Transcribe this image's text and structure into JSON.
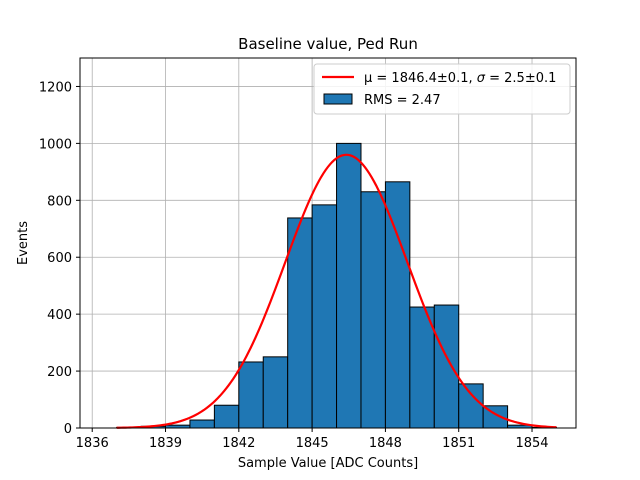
{
  "chart_data": {
    "type": "bar",
    "title": "Baseline value, Ped Run",
    "xlabel": "Sample Value [ADC Counts]",
    "ylabel": "Events",
    "xlim": [
      1835.5,
      1855.8
    ],
    "ylim": [
      0,
      1300
    ],
    "xticks": [
      1836,
      1839,
      1842,
      1845,
      1848,
      1851,
      1854
    ],
    "yticks": [
      0,
      200,
      400,
      600,
      800,
      1000,
      1200
    ],
    "grid": true,
    "legend_position": "top-right",
    "histogram": {
      "name": "RMS = 2.47",
      "bin_edges": [
        1837,
        1838,
        1839,
        1840,
        1841,
        1842,
        1843,
        1844,
        1845,
        1846,
        1847,
        1848,
        1849,
        1850,
        1851,
        1852,
        1853,
        1854,
        1855
      ],
      "counts": [
        2,
        6,
        10,
        28,
        80,
        232,
        250,
        738,
        784,
        1000,
        830,
        865,
        425,
        432,
        155,
        78,
        10,
        2
      ],
      "color": "#1f77b4"
    },
    "fit": {
      "name_prefix": "μ = 1846.4±0.1, ",
      "name_sigma": "σ",
      "name_suffix": " = 2.5±0.1",
      "mu": 1846.4,
      "sigma": 2.5,
      "amplitude": 960,
      "x_range": [
        1837,
        1855
      ],
      "color": "#ff0000"
    }
  }
}
